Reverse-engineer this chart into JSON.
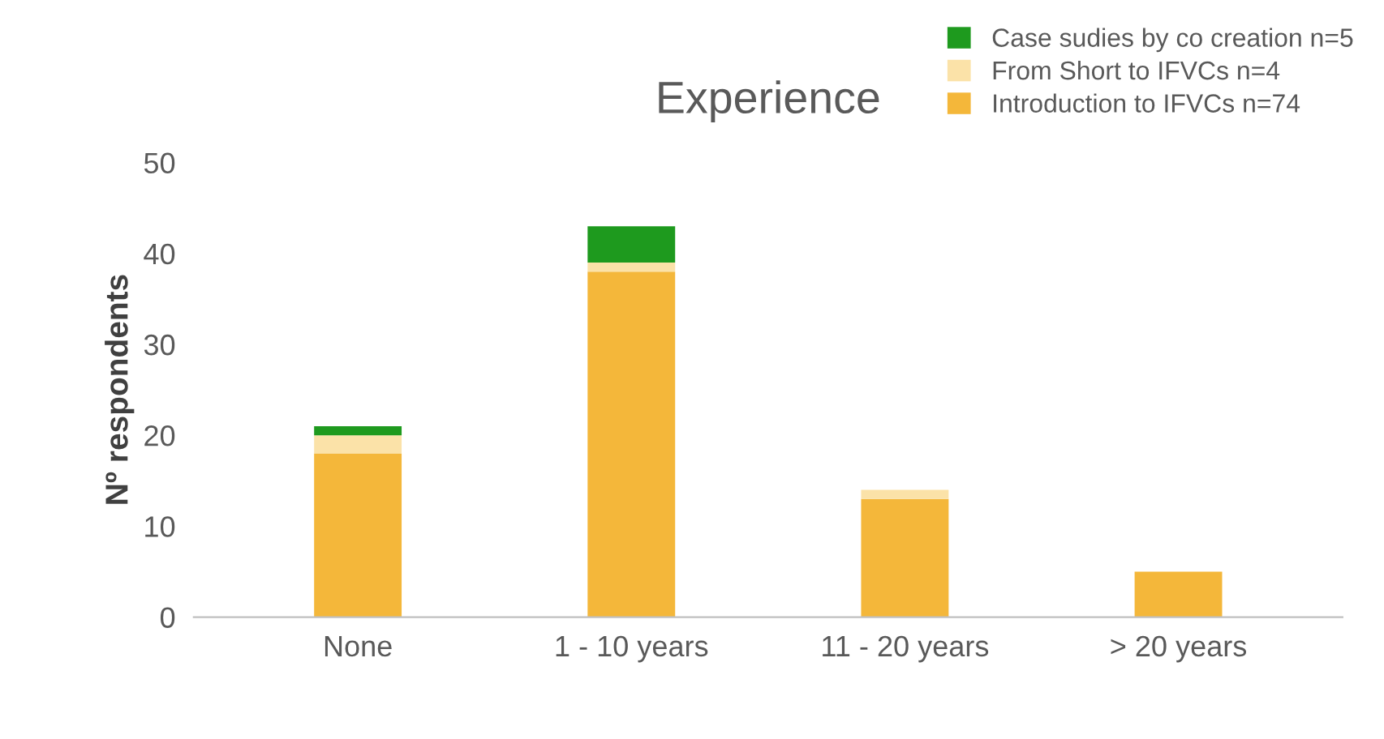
{
  "chart_data": {
    "type": "bar",
    "title": "Experience",
    "ylabel": "Nº respondents",
    "categories": [
      "None",
      "1 - 10 years",
      "11 - 20 years",
      "> 20 years"
    ],
    "stacked": true,
    "series": [
      {
        "name": "Introduction to IFVCs n=74",
        "color": "#f4b73a",
        "values": [
          18,
          38,
          13,
          5
        ]
      },
      {
        "name": "From Short to IFVCs n=4",
        "color": "#fbe2a8",
        "values": [
          2,
          1,
          1,
          0
        ]
      },
      {
        "name": "Case sudies by co creation n=5",
        "color": "#1e9a1e",
        "values": [
          1,
          4,
          0,
          0
        ]
      }
    ],
    "ylim": [
      0,
      50
    ],
    "yticks": [
      0,
      10,
      20,
      30,
      40,
      50
    ],
    "grid": false,
    "legend": "top right"
  }
}
